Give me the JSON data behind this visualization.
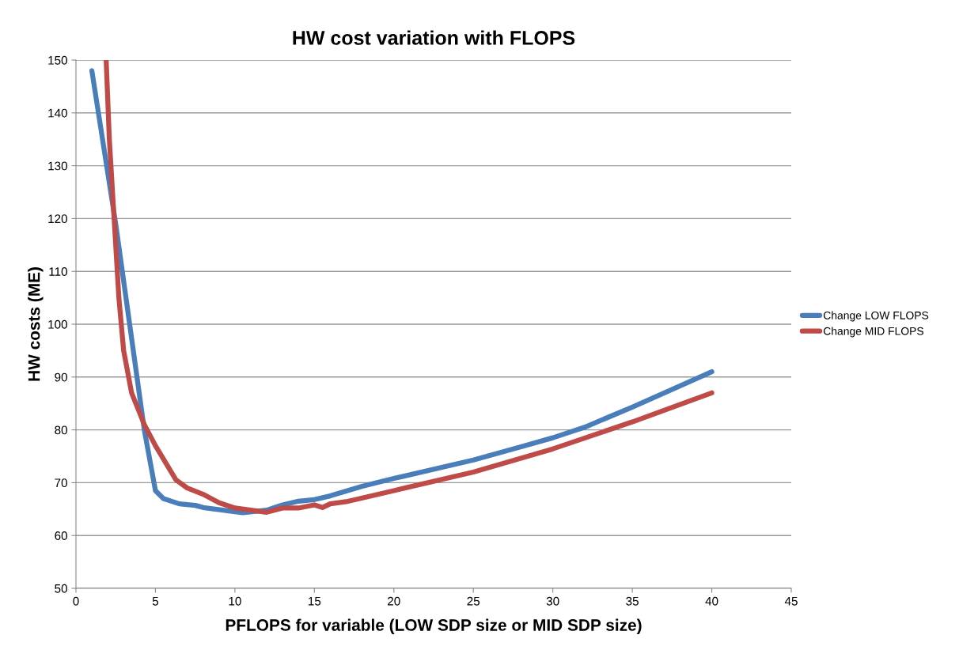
{
  "chart_data": {
    "type": "line",
    "title": "HW cost variation with FLOPS",
    "xlabel": "PFLOPS for variable (LOW SDP size or MID SDP size)",
    "ylabel": "HW costs (ME)",
    "series": [
      {
        "name": "Change LOW FLOPS",
        "color": "#4a7ebb",
        "x": [
          1,
          2.5,
          4.3,
          5,
          5.5,
          6.5,
          7.5,
          8,
          10,
          10.5,
          12,
          13,
          14,
          15,
          16,
          18,
          20,
          25,
          28,
          30,
          32,
          35,
          40
        ],
        "values": [
          148,
          119,
          80,
          68.5,
          67,
          66,
          65.7,
          65.3,
          64.5,
          64.3,
          64.8,
          65.8,
          66.5,
          66.8,
          67.5,
          69.3,
          70.8,
          74.3,
          76.8,
          78.5,
          80.5,
          84.3,
          91
        ]
      },
      {
        "name": "Change MID FLOPS",
        "color": "#be4b48",
        "x": [
          1.9,
          2.1,
          2.4,
          2.7,
          3,
          3.5,
          4.3,
          5,
          6.3,
          7,
          8,
          9,
          10,
          11,
          12,
          13,
          14,
          15,
          15.5,
          16,
          17,
          20,
          25,
          30,
          35,
          40
        ],
        "values": [
          150,
          135,
          120,
          105,
          95,
          87,
          81,
          77,
          70.5,
          69,
          67.8,
          66.2,
          65.2,
          64.8,
          64.4,
          65.2,
          65.2,
          65.8,
          65.3,
          66,
          66.4,
          68.5,
          72,
          76.4,
          81.5,
          87
        ]
      }
    ],
    "xlim": [
      0,
      45
    ],
    "xticks": [
      0,
      5,
      10,
      15,
      20,
      25,
      30,
      35,
      40,
      45
    ],
    "ylim": [
      50,
      150
    ],
    "yticks": [
      50,
      60,
      70,
      80,
      90,
      100,
      110,
      120,
      130,
      140,
      150
    ],
    "grid": "y",
    "legend": "right",
    "marker": "none",
    "line_style": "solid"
  }
}
